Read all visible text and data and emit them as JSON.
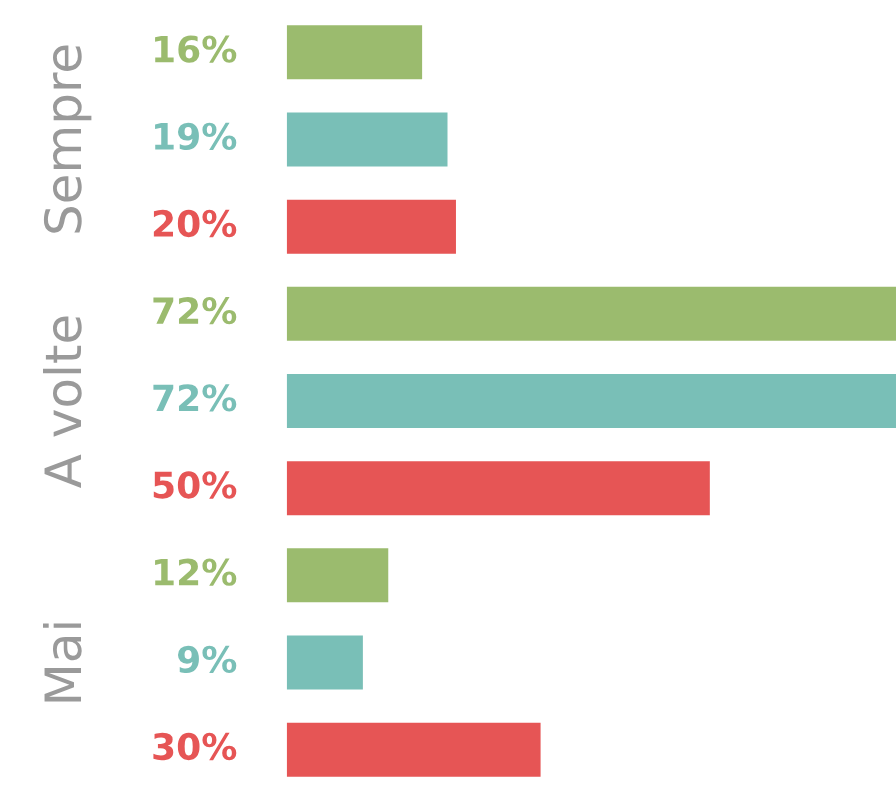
{
  "chart_data": {
    "type": "bar",
    "orientation": "horizontal",
    "categories": [
      "Sempre",
      "A volte",
      "Mai"
    ],
    "series": [
      {
        "color": "#9bbb6e",
        "values": [
          16,
          72,
          12
        ],
        "value_labels": [
          "16%",
          "72%",
          "12%"
        ]
      },
      {
        "color": "#79bfb7",
        "values": [
          19,
          72,
          9
        ],
        "value_labels": [
          "19%",
          "72%",
          "9%"
        ]
      },
      {
        "color": "#e65555",
        "values": [
          20,
          50,
          30
        ],
        "value_labels": [
          "20%",
          "50%",
          "30%"
        ]
      }
    ]
  }
}
